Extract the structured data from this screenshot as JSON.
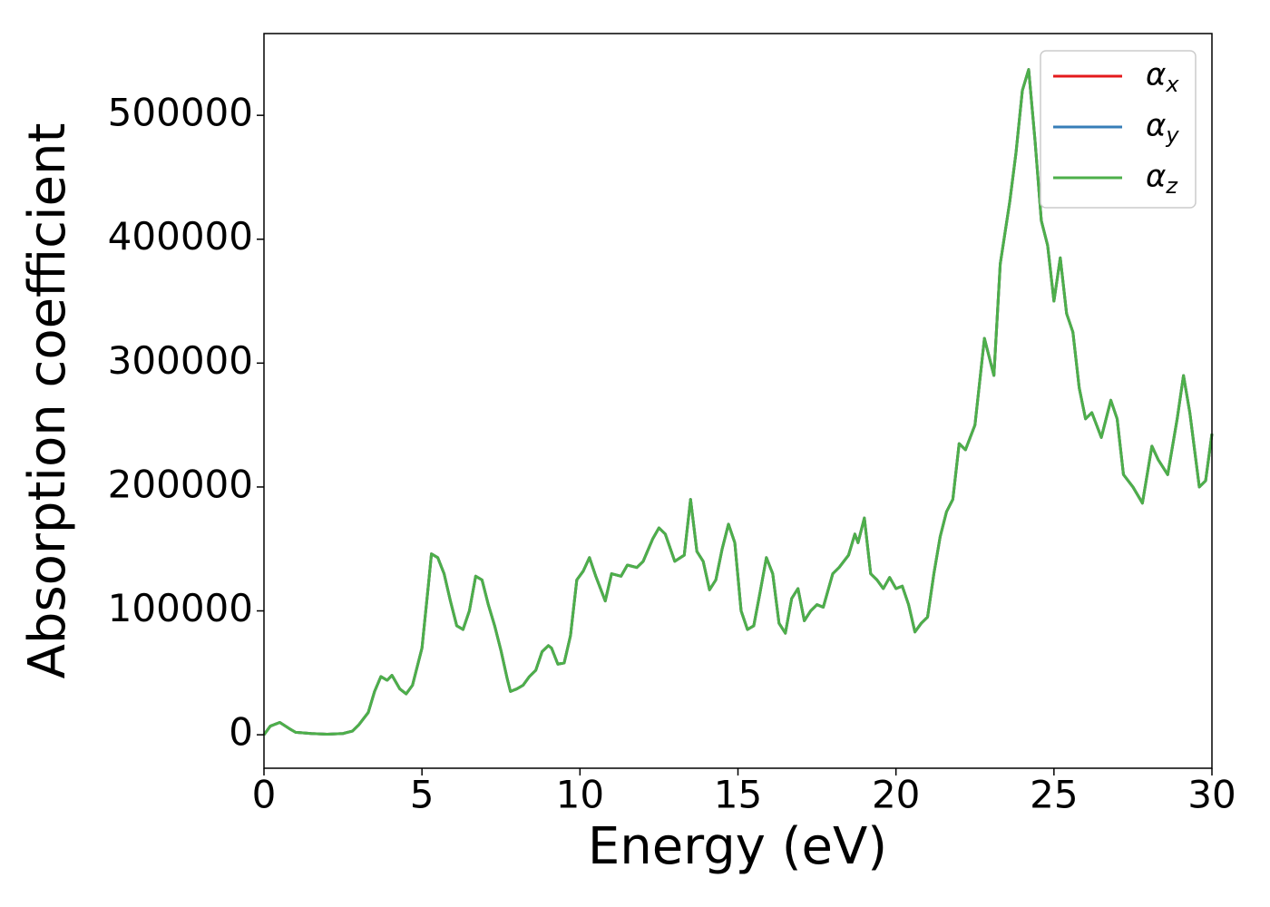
{
  "chart_data": {
    "type": "line",
    "xlabel": "Energy (eV)",
    "ylabel": "Absorption coefficient",
    "x": [
      0,
      0.2,
      0.5,
      0.8,
      1.0,
      1.5,
      2.0,
      2.5,
      2.8,
      3.0,
      3.3,
      3.5,
      3.7,
      3.9,
      4.05,
      4.3,
      4.5,
      4.7,
      5.0,
      5.2,
      5.3,
      5.5,
      5.7,
      5.9,
      6.1,
      6.3,
      6.5,
      6.7,
      6.9,
      7.1,
      7.3,
      7.5,
      7.7,
      7.8,
      8.0,
      8.2,
      8.4,
      8.6,
      8.8,
      9.0,
      9.1,
      9.3,
      9.5,
      9.7,
      9.9,
      10.1,
      10.3,
      10.5,
      10.8,
      11.0,
      11.3,
      11.5,
      11.8,
      12.0,
      12.3,
      12.5,
      12.7,
      13.0,
      13.3,
      13.5,
      13.7,
      13.9,
      14.1,
      14.3,
      14.5,
      14.7,
      14.9,
      15.1,
      15.3,
      15.5,
      15.7,
      15.9,
      16.1,
      16.3,
      16.5,
      16.7,
      16.9,
      17.1,
      17.3,
      17.5,
      17.7,
      18.0,
      18.2,
      18.5,
      18.7,
      18.8,
      19.0,
      19.2,
      19.4,
      19.6,
      19.8,
      20.0,
      20.2,
      20.4,
      20.6,
      20.8,
      21.0,
      21.2,
      21.4,
      21.6,
      21.8,
      22.0,
      22.2,
      22.5,
      22.8,
      23.1,
      23.3,
      23.6,
      23.8,
      24.0,
      24.2,
      24.4,
      24.6,
      24.8,
      25.0,
      25.2,
      25.4,
      25.6,
      25.8,
      26.0,
      26.2,
      26.5,
      26.8,
      27.0,
      27.2,
      27.5,
      27.8,
      28.1,
      28.3,
      28.6,
      28.9,
      29.1,
      29.3,
      29.6,
      29.8,
      30.0
    ],
    "series": [
      {
        "name": "αx",
        "color": "#e41a1c",
        "values": [
          0,
          7000,
          10000,
          5000,
          2000,
          1000,
          500,
          1000,
          3000,
          8000,
          18000,
          35000,
          47000,
          44000,
          48000,
          37000,
          33000,
          40000,
          70000,
          120000,
          146000,
          143000,
          130000,
          108000,
          88000,
          85000,
          100000,
          128000,
          125000,
          105000,
          88000,
          68000,
          45000,
          35000,
          37000,
          40000,
          47000,
          52000,
          67000,
          72000,
          70000,
          57000,
          58000,
          80000,
          125000,
          132000,
          143000,
          128000,
          108000,
          130000,
          128000,
          137000,
          135000,
          140000,
          158000,
          167000,
          162000,
          140000,
          145000,
          190000,
          148000,
          140000,
          117000,
          125000,
          150000,
          170000,
          155000,
          100000,
          85000,
          88000,
          115000,
          143000,
          130000,
          90000,
          82000,
          110000,
          118000,
          92000,
          100000,
          105000,
          103000,
          130000,
          135000,
          145000,
          162000,
          155000,
          175000,
          130000,
          125000,
          118000,
          127000,
          118000,
          120000,
          105000,
          83000,
          90000,
          95000,
          130000,
          160000,
          180000,
          190000,
          235000,
          230000,
          250000,
          320000,
          290000,
          380000,
          430000,
          470000,
          520000,
          537000,
          480000,
          415000,
          395000,
          350000,
          385000,
          340000,
          325000,
          280000,
          255000,
          260000,
          240000,
          270000,
          255000,
          210000,
          200000,
          187000,
          233000,
          222000,
          210000,
          255000,
          290000,
          260000,
          200000,
          205000,
          243000
        ]
      },
      {
        "name": "αy",
        "color": "#377eb8",
        "values": [
          0,
          7000,
          10000,
          5000,
          2000,
          1000,
          500,
          1000,
          3000,
          8000,
          18000,
          35000,
          47000,
          44000,
          48000,
          37000,
          33000,
          40000,
          70000,
          120000,
          146000,
          143000,
          130000,
          108000,
          88000,
          85000,
          100000,
          128000,
          125000,
          105000,
          88000,
          68000,
          45000,
          35000,
          37000,
          40000,
          47000,
          52000,
          67000,
          72000,
          70000,
          57000,
          58000,
          80000,
          125000,
          132000,
          143000,
          128000,
          108000,
          130000,
          128000,
          137000,
          135000,
          140000,
          158000,
          167000,
          162000,
          140000,
          145000,
          190000,
          148000,
          140000,
          117000,
          125000,
          150000,
          170000,
          155000,
          100000,
          85000,
          88000,
          115000,
          143000,
          130000,
          90000,
          82000,
          110000,
          118000,
          92000,
          100000,
          105000,
          103000,
          130000,
          135000,
          145000,
          162000,
          155000,
          175000,
          130000,
          125000,
          118000,
          127000,
          118000,
          120000,
          105000,
          83000,
          90000,
          95000,
          130000,
          160000,
          180000,
          190000,
          235000,
          230000,
          250000,
          320000,
          290000,
          380000,
          430000,
          470000,
          520000,
          537000,
          480000,
          415000,
          395000,
          350000,
          385000,
          340000,
          325000,
          280000,
          255000,
          260000,
          240000,
          270000,
          255000,
          210000,
          200000,
          187000,
          233000,
          222000,
          210000,
          255000,
          290000,
          260000,
          200000,
          205000,
          243000
        ]
      },
      {
        "name": "αz",
        "color": "#4daf4a",
        "values": [
          0,
          7000,
          10000,
          5000,
          2000,
          1000,
          500,
          1000,
          3000,
          8000,
          18000,
          35000,
          47000,
          44000,
          48000,
          37000,
          33000,
          40000,
          70000,
          120000,
          146000,
          143000,
          130000,
          108000,
          88000,
          85000,
          100000,
          128000,
          125000,
          105000,
          88000,
          68000,
          45000,
          35000,
          37000,
          40000,
          47000,
          52000,
          67000,
          72000,
          70000,
          57000,
          58000,
          80000,
          125000,
          132000,
          143000,
          128000,
          108000,
          130000,
          128000,
          137000,
          135000,
          140000,
          158000,
          167000,
          162000,
          140000,
          145000,
          190000,
          148000,
          140000,
          117000,
          125000,
          150000,
          170000,
          155000,
          100000,
          85000,
          88000,
          115000,
          143000,
          130000,
          90000,
          82000,
          110000,
          118000,
          92000,
          100000,
          105000,
          103000,
          130000,
          135000,
          145000,
          162000,
          155000,
          175000,
          130000,
          125000,
          118000,
          127000,
          118000,
          120000,
          105000,
          83000,
          90000,
          95000,
          130000,
          160000,
          180000,
          190000,
          235000,
          230000,
          250000,
          320000,
          290000,
          380000,
          430000,
          470000,
          520000,
          537000,
          480000,
          415000,
          395000,
          350000,
          385000,
          340000,
          325000,
          280000,
          255000,
          260000,
          240000,
          270000,
          255000,
          210000,
          200000,
          187000,
          233000,
          222000,
          210000,
          255000,
          290000,
          260000,
          200000,
          205000,
          243000
        ]
      }
    ],
    "xlim": [
      0,
      30
    ],
    "xticks": [
      0,
      5,
      10,
      15,
      20,
      25,
      30
    ],
    "ylim": [
      -27000,
      566000
    ],
    "yticks": [
      0,
      100000,
      200000,
      300000,
      400000,
      500000
    ],
    "legend": "upper right"
  }
}
